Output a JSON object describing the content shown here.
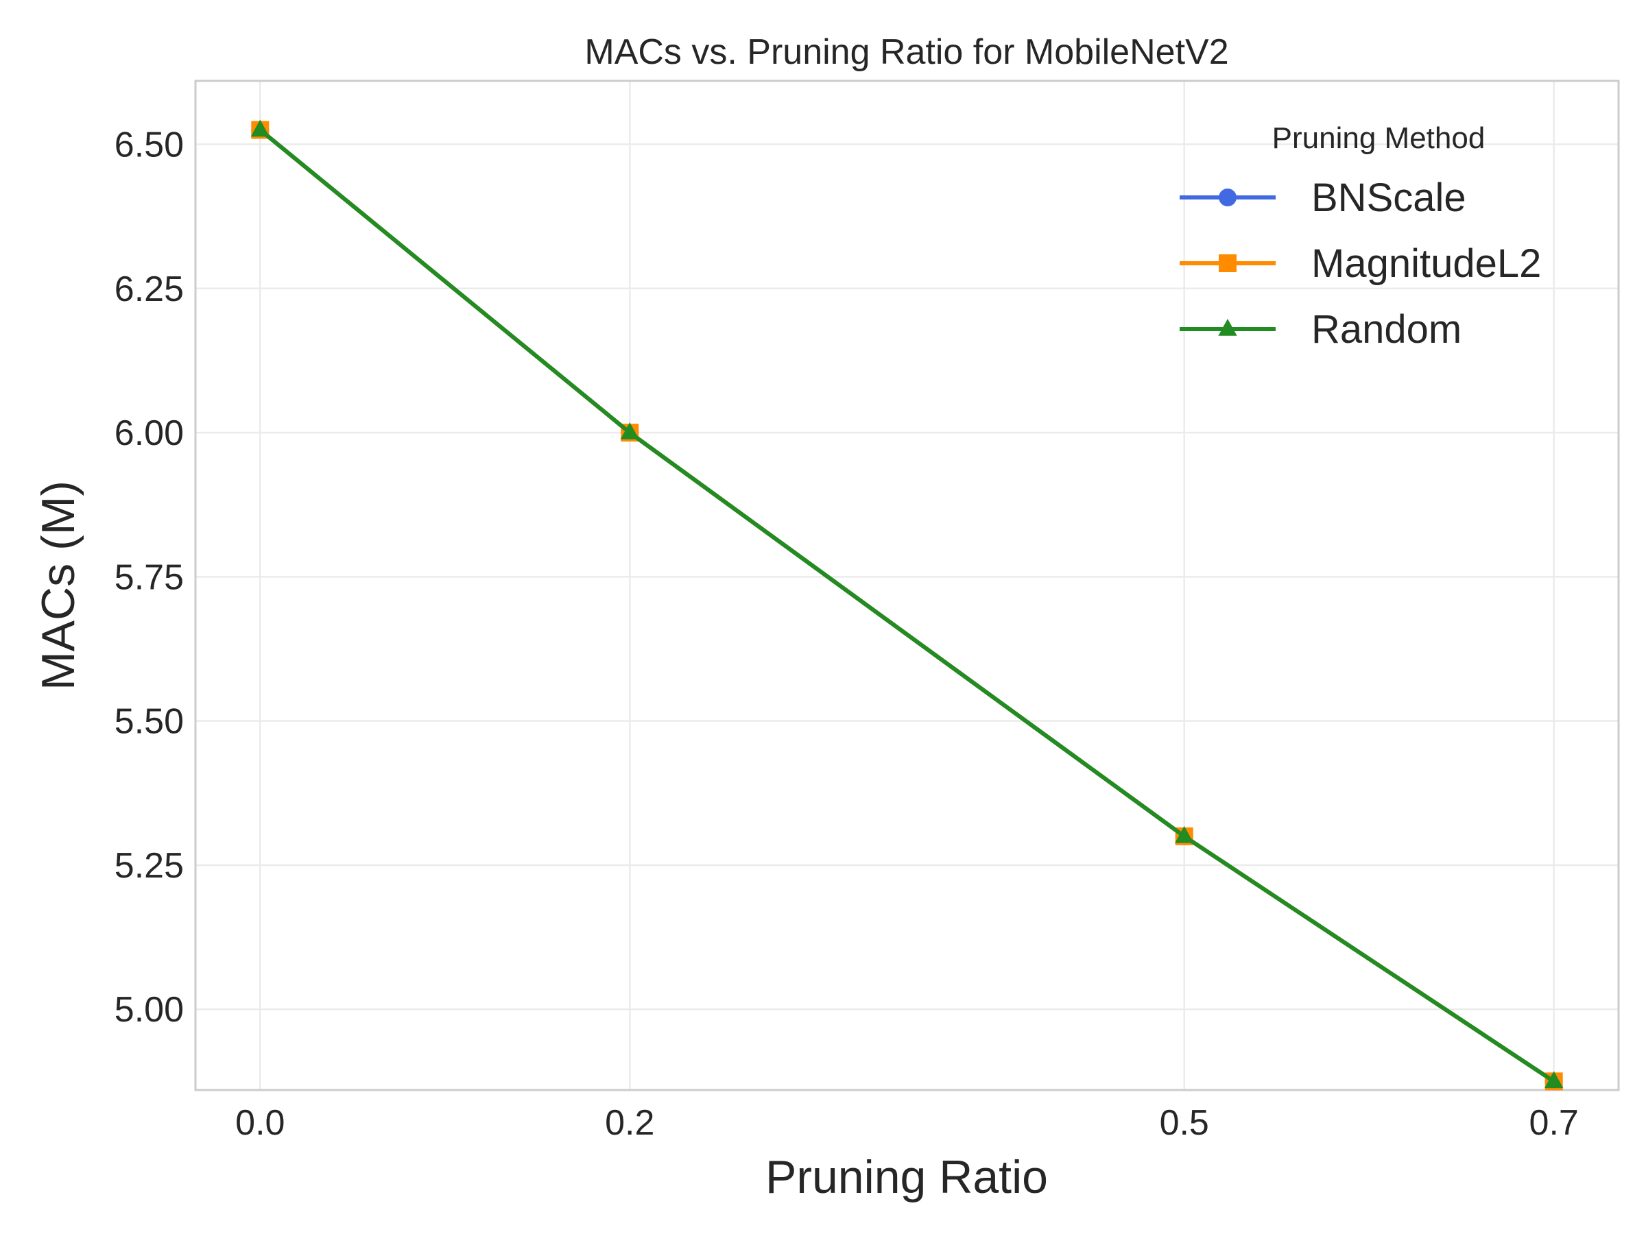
{
  "chart_data": {
    "type": "line",
    "title": "MACs vs. Pruning Ratio for MobileNetV2",
    "xlabel": "Pruning Ratio",
    "ylabel": "MACs (M)",
    "x": [
      0.0,
      0.2,
      0.5,
      0.7
    ],
    "x_tick_labels": [
      "0.0",
      "0.2",
      "0.5",
      "0.7"
    ],
    "y_ticks": [
      5.0,
      5.25,
      5.5,
      5.75,
      6.0,
      6.25,
      6.5
    ],
    "y_tick_labels": [
      "5.00",
      "5.25",
      "5.50",
      "5.75",
      "6.00",
      "6.25",
      "6.50"
    ],
    "xlim": [
      -0.035,
      0.735
    ],
    "ylim": [
      4.86,
      6.61
    ],
    "grid": true,
    "legend": {
      "title": "Pruning Method",
      "placement": "top-right"
    },
    "series": [
      {
        "name": "BNScale",
        "values": [
          6.525,
          6.0,
          5.3,
          4.875
        ],
        "color": "#4169e1",
        "marker": "circle"
      },
      {
        "name": "MagnitudeL2",
        "values": [
          6.525,
          6.0,
          5.3,
          4.875
        ],
        "color": "#ff8c00",
        "marker": "square"
      },
      {
        "name": "Random",
        "values": [
          6.525,
          6.0,
          5.3,
          4.875
        ],
        "color": "#228b22",
        "marker": "triangle"
      }
    ]
  }
}
